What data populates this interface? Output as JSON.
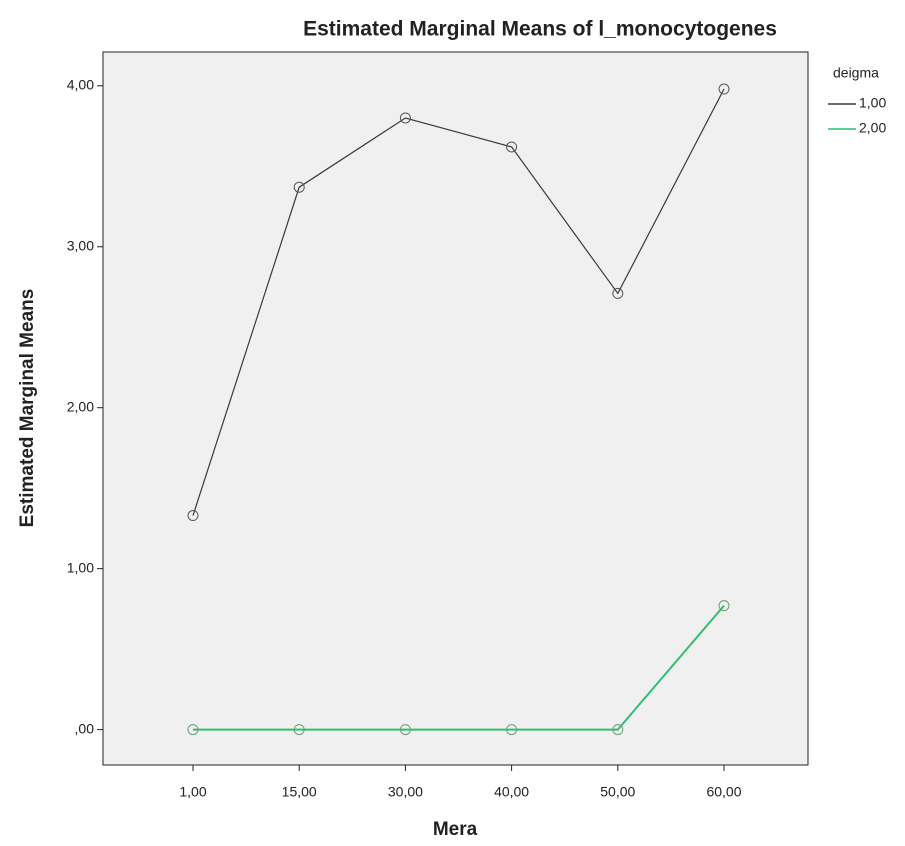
{
  "chart_data": {
    "type": "line",
    "title": "Estimated Marginal Means of l_monocytogenes",
    "x_label": "Mera",
    "y_label": "Estimated Marginal Means",
    "legend_title": "deigma",
    "legend_position": "right",
    "categories": [
      "1,00",
      "15,00",
      "30,00",
      "40,00",
      "50,00",
      "60,00"
    ],
    "series": [
      {
        "name": "1,00",
        "color": "#3a3a3a",
        "values": [
          1.33,
          3.37,
          3.8,
          3.62,
          2.71,
          3.98
        ]
      },
      {
        "name": "2,00",
        "color": "#2fbf71",
        "values": [
          0,
          0,
          0,
          0,
          0,
          0.77
        ]
      }
    ],
    "ylim": [
      -0.22,
      4.21
    ],
    "yticks": [
      {
        "value": 0,
        "label": ",00"
      },
      {
        "value": 1,
        "label": "1,00"
      },
      {
        "value": 2,
        "label": "2,00"
      },
      {
        "value": 3,
        "label": "3,00"
      },
      {
        "value": 4,
        "label": "4,00"
      }
    ]
  }
}
